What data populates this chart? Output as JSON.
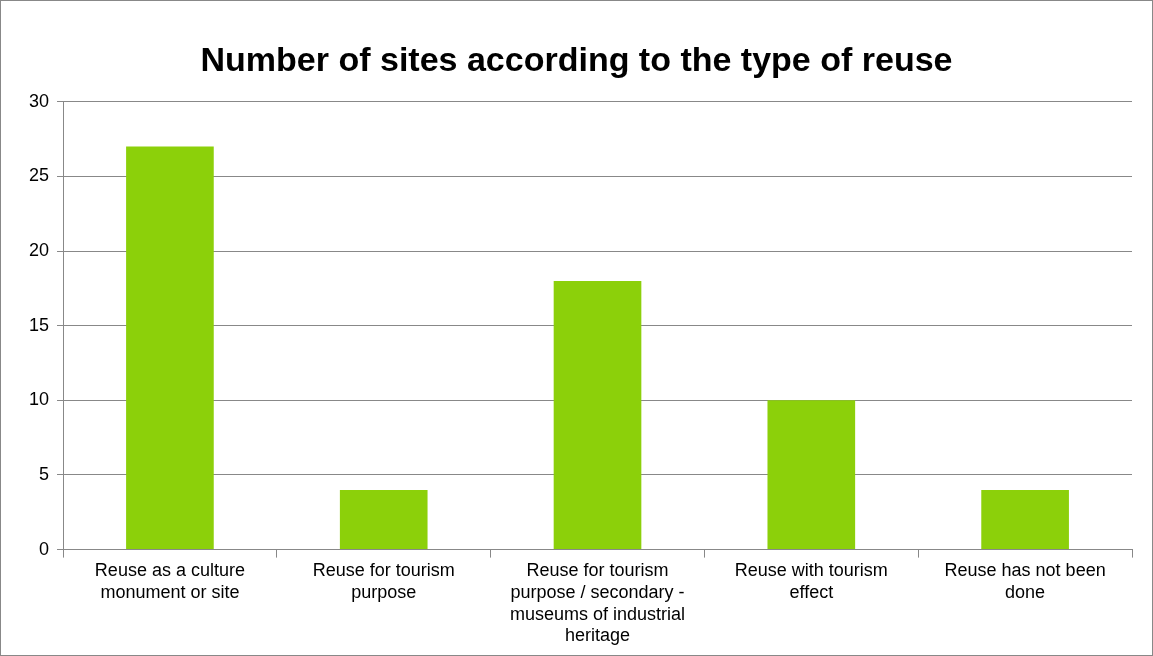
{
  "chart_data": {
    "type": "bar",
    "title": "Number of sites according to the type of reuse",
    "categories": [
      "Reuse as a culture monument or site",
      "Reuse for tourism purpose",
      "Reuse for tourism purpose / secondary - museums of industrial heritage",
      "Reuse with tourism effect",
      "Reuse has not been done"
    ],
    "values": [
      27,
      4,
      18,
      10,
      4
    ],
    "color": "#8cd00a",
    "ylim": [
      0,
      30
    ],
    "yticks": [
      0,
      5,
      10,
      15,
      20,
      25,
      30
    ],
    "grid": "y",
    "legend": false
  }
}
